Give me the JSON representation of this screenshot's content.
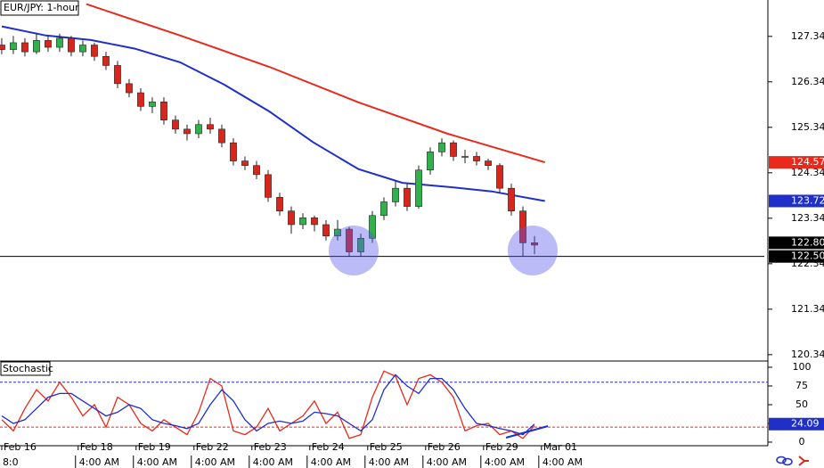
{
  "chart_data": [
    {
      "type": "candlestick",
      "title": "EUR/JPY: 1-hour",
      "open": [
        127.15,
        127.05,
        127.2,
        127.0,
        127.25,
        127.1,
        127.3,
        127.0,
        127.15,
        126.9,
        126.7,
        126.3,
        126.1,
        125.8,
        125.9,
        125.5,
        125.3,
        125.2,
        125.4,
        125.3,
        125.0,
        124.6,
        124.5,
        124.3,
        123.8,
        123.5,
        123.2,
        123.35,
        123.2,
        122.95,
        123.1,
        122.6,
        122.9,
        123.4,
        123.7,
        124.0,
        123.6,
        124.4,
        124.8,
        125.0,
        124.7,
        124.7,
        124.6,
        124.5,
        124.0,
        123.5,
        122.8
      ],
      "high": [
        127.3,
        127.35,
        127.3,
        127.4,
        127.35,
        127.4,
        127.35,
        127.25,
        127.2,
        127.0,
        126.8,
        126.4,
        126.2,
        126.0,
        126.0,
        125.6,
        125.4,
        125.5,
        125.55,
        125.4,
        125.1,
        124.7,
        124.6,
        124.4,
        123.9,
        123.6,
        123.45,
        123.4,
        123.3,
        123.3,
        123.15,
        123.0,
        123.5,
        123.8,
        124.15,
        124.1,
        124.5,
        124.9,
        125.1,
        125.05,
        124.85,
        124.8,
        124.65,
        124.55,
        124.1,
        123.6,
        122.95
      ],
      "low": [
        126.95,
        126.95,
        126.9,
        126.95,
        127.0,
        127.0,
        126.9,
        126.9,
        126.8,
        126.6,
        126.2,
        126.0,
        125.7,
        125.65,
        125.4,
        125.2,
        125.05,
        125.1,
        125.2,
        124.9,
        124.5,
        124.4,
        124.2,
        123.7,
        123.4,
        123.0,
        123.1,
        123.05,
        122.85,
        122.85,
        122.5,
        122.5,
        122.8,
        123.3,
        123.6,
        123.5,
        123.55,
        124.3,
        124.7,
        124.6,
        124.55,
        124.5,
        124.4,
        123.9,
        123.4,
        122.5,
        122.55
      ],
      "close": [
        127.05,
        127.2,
        127.0,
        127.25,
        127.1,
        127.3,
        127.0,
        127.15,
        126.9,
        126.7,
        126.3,
        126.1,
        125.8,
        125.9,
        125.5,
        125.3,
        125.2,
        125.4,
        125.3,
        125.0,
        124.6,
        124.5,
        124.3,
        123.8,
        123.5,
        123.2,
        123.35,
        123.2,
        122.95,
        123.1,
        122.6,
        122.9,
        123.4,
        123.7,
        124.0,
        123.6,
        124.4,
        124.8,
        125.0,
        124.7,
        124.7,
        124.6,
        124.5,
        124.0,
        123.5,
        122.8,
        122.75
      ],
      "up_color": "#2fb24a",
      "down_color": "#d9261c",
      "lines": [
        {
          "color": "#e8291c",
          "x": [
            7.3,
            15.4,
            23.1,
            30.8,
            38.5,
            46.9
          ],
          "values": [
            128.05,
            127.36,
            126.67,
            125.89,
            125.2,
            124.57
          ]
        },
        {
          "color": "#1f2fc8",
          "x": [
            0,
            3.8,
            7.7,
            11.5,
            15.4,
            19.2,
            23.1,
            26.9,
            30.8,
            34.6,
            38.5,
            42.3,
            46.9
          ],
          "values": [
            127.56,
            127.36,
            127.26,
            127.07,
            126.77,
            126.28,
            125.69,
            125.01,
            124.42,
            124.12,
            124.03,
            123.93,
            123.72
          ]
        }
      ],
      "xlim": [
        -0.15,
        66.15
      ],
      "ylim": [
        120.2,
        128.14
      ],
      "yticks": [
        127.34,
        126.34,
        125.34,
        124.34,
        123.34,
        122.34,
        121.34,
        120.34
      ],
      "xticks": [
        {
          "value": 0,
          "label": "Feb 16"
        },
        {
          "value": 6.6,
          "label": "Feb 18"
        },
        {
          "value": 11.6,
          "label": "Feb 19"
        },
        {
          "value": 16.6,
          "label": "Feb 22"
        },
        {
          "value": 21.6,
          "label": "Feb 23"
        },
        {
          "value": 26.6,
          "label": "Feb 24"
        },
        {
          "value": 31.6,
          "label": "Feb 25"
        },
        {
          "value": 36.6,
          "label": "Feb 26"
        },
        {
          "value": 41.6,
          "label": "Feb 29"
        },
        {
          "value": 46.6,
          "label": "Mar 01"
        }
      ],
      "xtick_times": [
        "8:0",
        "4:00 AM",
        "4:00 AM",
        "4:00 AM",
        "4:00 AM",
        "4:00 AM",
        "4:00 AM",
        "4:00 AM",
        "4:00 AM",
        "4:00 AM"
      ],
      "price_labels": [
        {
          "value": 124.57,
          "color": "#e8291c"
        },
        {
          "value": 123.72,
          "color": "#1f2fc8"
        },
        {
          "value": 122.8,
          "label": "122.80",
          "color": "#000000"
        },
        {
          "value": 122.5,
          "label": "122.50",
          "color": "#000000",
          "hline": true
        }
      ]
    },
    {
      "type": "line",
      "title": "Stochastic",
      "series": [
        {
          "color": "#e8291c",
          "values": [
            30,
            15,
            45,
            70,
            55,
            80,
            60,
            35,
            50,
            20,
            60,
            50,
            25,
            15,
            30,
            20,
            10,
            40,
            85,
            75,
            15,
            10,
            20,
            45,
            15,
            25,
            35,
            55,
            25,
            40,
            5,
            10,
            60,
            95,
            88,
            50,
            85,
            90,
            80,
            60,
            15,
            22,
            25,
            10,
            15,
            5,
            22
          ]
        },
        {
          "color": "#1f2fc8",
          "values": [
            35,
            25,
            30,
            45,
            60,
            65,
            65,
            55,
            45,
            35,
            40,
            50,
            45,
            30,
            25,
            22,
            18,
            25,
            50,
            70,
            55,
            30,
            15,
            25,
            28,
            25,
            28,
            40,
            38,
            35,
            25,
            15,
            30,
            70,
            90,
            75,
            65,
            85,
            85,
            70,
            45,
            25,
            22,
            18,
            15,
            10,
            24.09
          ]
        }
      ],
      "ylim": [
        -4.8,
        108.3
      ],
      "yticks": [
        100,
        75,
        50,
        25,
        0
      ],
      "levels": [
        {
          "value": 80,
          "color": "#1f2fc8"
        },
        {
          "value": 20,
          "color": "#e8291c"
        }
      ],
      "last_label": {
        "value": 24.09,
        "color": "#1f2fc8"
      }
    }
  ]
}
